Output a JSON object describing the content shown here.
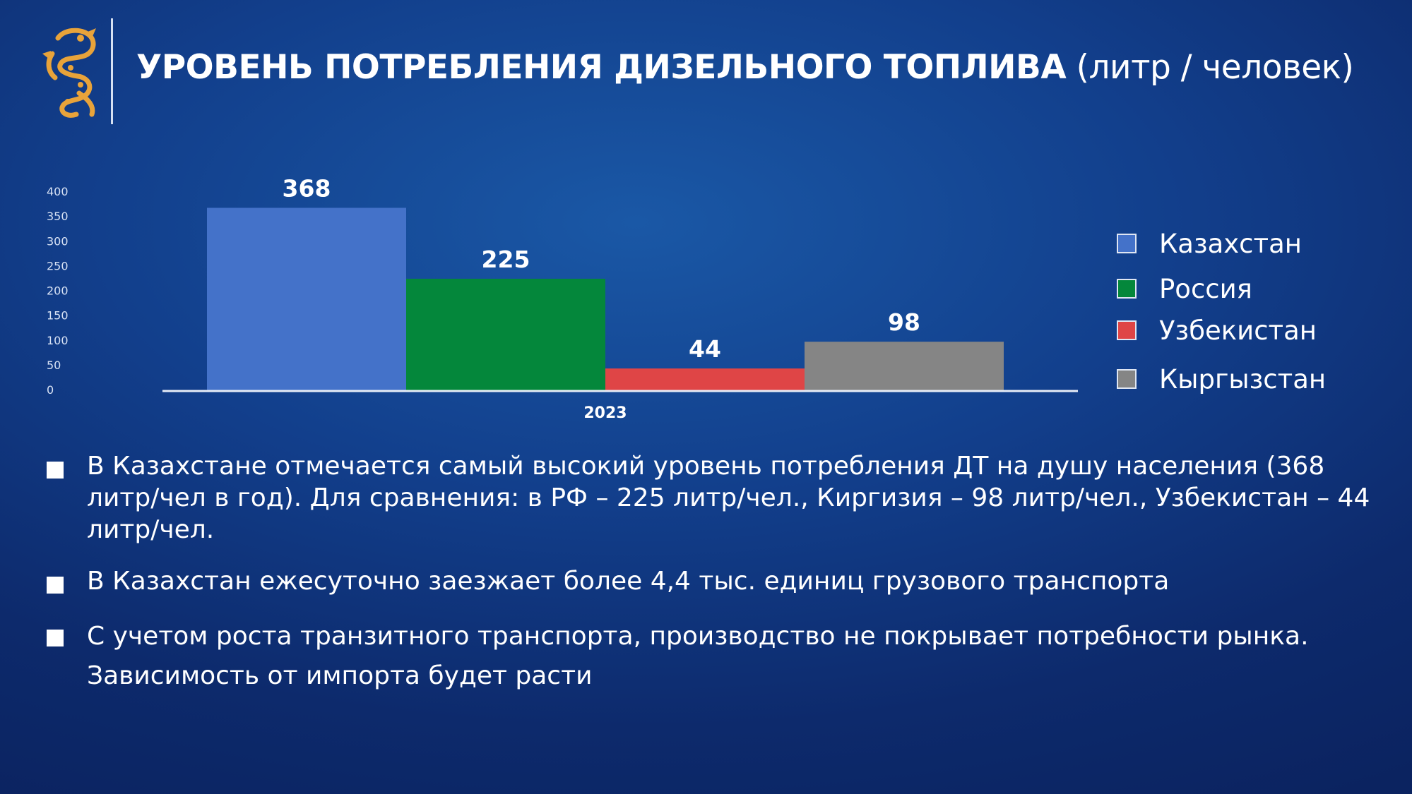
{
  "header": {
    "title_bold": "УРОВЕНЬ ПОТРЕБЛЕНИЯ ДИЗЕЛЬНОГО ТОПЛИВА",
    "title_unit": "(литр / человек)"
  },
  "colors": {
    "kazakhstan": "#4472c9",
    "russia": "#04873b",
    "uzbekistan": "#df4546",
    "kyrgyzstan": "#858585",
    "logo_gold": "#e8a33a"
  },
  "chart_data": {
    "type": "bar",
    "categories": [
      "2023"
    ],
    "series": [
      {
        "name": "Казахстан",
        "values": [
          368
        ],
        "color": "#4472c9"
      },
      {
        "name": "Россия",
        "values": [
          225
        ],
        "color": "#04873b"
      },
      {
        "name": "Узбекистан",
        "values": [
          44
        ],
        "color": "#df4546"
      },
      {
        "name": "Кыргызстан",
        "values": [
          98
        ],
        "color": "#858585"
      }
    ],
    "ylim": [
      0,
      400
    ],
    "yticks": [
      "0",
      "50",
      "100",
      "150",
      "200",
      "250",
      "300",
      "350",
      "400"
    ],
    "legend_position": "right",
    "grid": false
  },
  "bullets": [
    "В Казахстане отмечается самый высокий уровень потребления ДТ на душу населения (368 литр/чел в год). Для сравнения: в РФ – 225 литр/чел., Киргизия – 98 литр/чел., Узбекистан – 44 литр/чел.",
    "В Казахстан ежесуточно заезжает более 4,4 тыс. единиц грузового транспорта",
    "С учетом роста транзитного транспорта, производство не покрывает потребности рынка. Зависимость от импорта будет расти"
  ]
}
